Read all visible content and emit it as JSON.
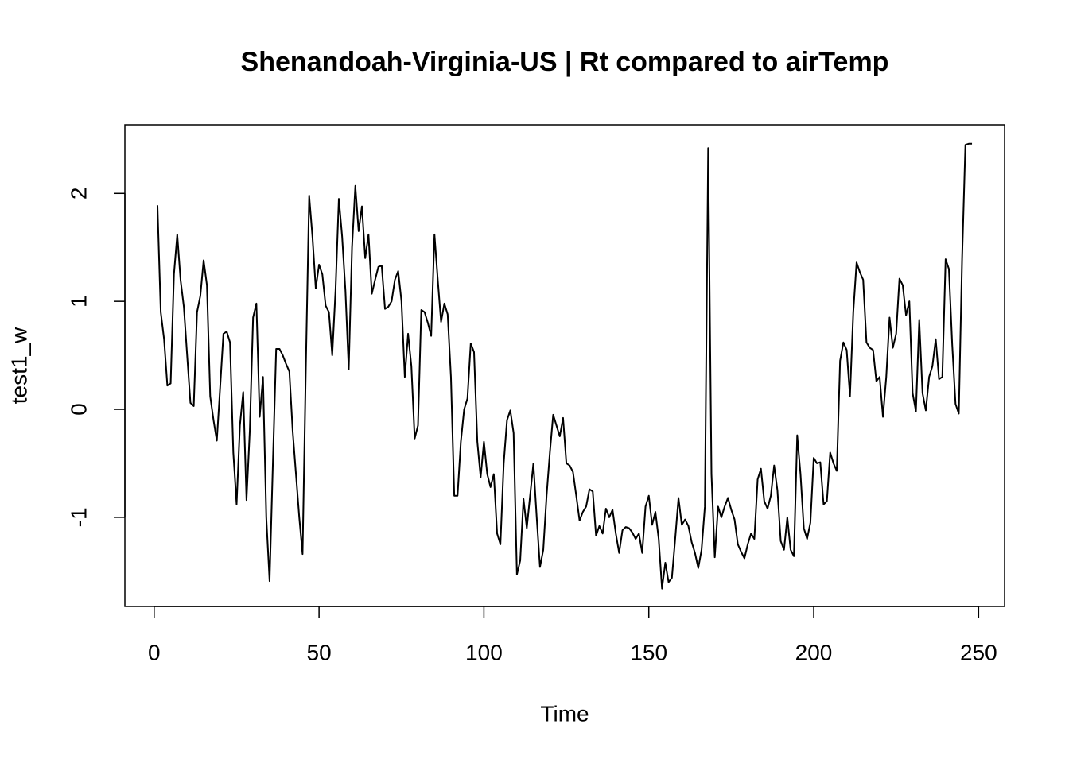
{
  "chart_data": {
    "type": "line",
    "title": "Shenandoah-Virginia-US | Rt compared to airTemp",
    "x_label": "Time",
    "y_label": "test1_w",
    "x": [
      1,
      2,
      3,
      4,
      5,
      6,
      7,
      8,
      9,
      10,
      11,
      12,
      13,
      14,
      15,
      16,
      17,
      18,
      19,
      20,
      21,
      22,
      23,
      24,
      25,
      26,
      27,
      28,
      29,
      30,
      31,
      32,
      33,
      34,
      35,
      36,
      37,
      38,
      39,
      40,
      41,
      42,
      43,
      44,
      45,
      46,
      47,
      48,
      49,
      50,
      51,
      52,
      53,
      54,
      55,
      56,
      57,
      58,
      59,
      60,
      61,
      62,
      63,
      64,
      65,
      66,
      67,
      68,
      69,
      70,
      71,
      72,
      73,
      74,
      75,
      76,
      77,
      78,
      79,
      80,
      81,
      82,
      83,
      84,
      85,
      86,
      87,
      88,
      89,
      90,
      91,
      92,
      93,
      94,
      95,
      96,
      97,
      98,
      99,
      100,
      101,
      102,
      103,
      104,
      105,
      106,
      107,
      108,
      109,
      110,
      111,
      112,
      113,
      114,
      115,
      116,
      117,
      118,
      119,
      120,
      121,
      122,
      123,
      124,
      125,
      126,
      127,
      128,
      129,
      130,
      131,
      132,
      133,
      134,
      135,
      136,
      137,
      138,
      139,
      140,
      141,
      142,
      143,
      144,
      145,
      146,
      147,
      148,
      149,
      150,
      151,
      152,
      153,
      154,
      155,
      156,
      157,
      158,
      159,
      160,
      161,
      162,
      163,
      164,
      165,
      166,
      167,
      168,
      169,
      170,
      171,
      172,
      173,
      174,
      175,
      176,
      177,
      178,
      179,
      180,
      181,
      182,
      183,
      184,
      185,
      186,
      187,
      188,
      189,
      190,
      191,
      192,
      193,
      194,
      195,
      196,
      197,
      198,
      199,
      200,
      201,
      202,
      203,
      204,
      205,
      206,
      207,
      208,
      209,
      210,
      211,
      212,
      213,
      214,
      215,
      216,
      217,
      218,
      219,
      220,
      221,
      222,
      223,
      224,
      225,
      226,
      227,
      228,
      229,
      230,
      231,
      232,
      233,
      234,
      235,
      236,
      237,
      238,
      239,
      240,
      241,
      242,
      243,
      244,
      245,
      246,
      247,
      248
    ],
    "values": [
      1.89,
      0.9,
      0.65,
      0.22,
      0.24,
      1.25,
      1.62,
      1.2,
      0.95,
      0.5,
      0.06,
      0.03,
      0.9,
      1.05,
      1.38,
      1.15,
      0.12,
      -0.1,
      -0.29,
      0.2,
      0.7,
      0.72,
      0.62,
      -0.4,
      -0.88,
      -0.15,
      0.16,
      -0.84,
      -0.2,
      0.85,
      0.98,
      -0.07,
      0.3,
      -1.0,
      -1.59,
      -0.5,
      0.56,
      0.56,
      0.5,
      0.42,
      0.35,
      -0.2,
      -0.6,
      -1.0,
      -1.34,
      0.4,
      1.98,
      1.6,
      1.12,
      1.34,
      1.25,
      0.96,
      0.9,
      0.5,
      1.1,
      1.95,
      1.6,
      1.1,
      0.37,
      1.5,
      2.07,
      1.65,
      1.88,
      1.4,
      1.62,
      1.07,
      1.2,
      1.32,
      1.33,
      0.93,
      0.95,
      1.0,
      1.2,
      1.28,
      1.0,
      0.3,
      0.7,
      0.4,
      -0.27,
      -0.15,
      0.92,
      0.9,
      0.8,
      0.68,
      1.62,
      1.2,
      0.81,
      0.98,
      0.88,
      0.3,
      -0.8,
      -0.8,
      -0.3,
      0.0,
      0.1,
      0.61,
      0.53,
      -0.3,
      -0.63,
      -0.3,
      -0.6,
      -0.72,
      -0.6,
      -1.15,
      -1.25,
      -0.5,
      -0.1,
      -0.01,
      -0.22,
      -1.53,
      -1.4,
      -0.83,
      -1.1,
      -0.8,
      -0.5,
      -1.0,
      -1.46,
      -1.3,
      -0.8,
      -0.4,
      -0.05,
      -0.15,
      -0.25,
      -0.08,
      -0.5,
      -0.52,
      -0.58,
      -0.8,
      -1.03,
      -0.95,
      -0.9,
      -0.74,
      -0.76,
      -1.17,
      -1.08,
      -1.15,
      -0.92,
      -1.0,
      -0.93,
      -1.15,
      -1.33,
      -1.12,
      -1.09,
      -1.1,
      -1.14,
      -1.2,
      -1.15,
      -1.33,
      -0.9,
      -0.8,
      -1.07,
      -0.95,
      -1.2,
      -1.66,
      -1.42,
      -1.6,
      -1.56,
      -1.2,
      -0.82,
      -1.07,
      -1.02,
      -1.08,
      -1.23,
      -1.33,
      -1.47,
      -1.3,
      -0.9,
      2.42,
      -0.6,
      -1.37,
      -0.9,
      -1.0,
      -0.9,
      -0.82,
      -0.93,
      -1.02,
      -1.25,
      -1.32,
      -1.38,
      -1.25,
      -1.15,
      -1.2,
      -0.65,
      -0.55,
      -0.85,
      -0.92,
      -0.8,
      -0.52,
      -0.75,
      -1.22,
      -1.3,
      -1.0,
      -1.3,
      -1.36,
      -0.24,
      -0.6,
      -1.1,
      -1.2,
      -1.05,
      -0.45,
      -0.5,
      -0.49,
      -0.88,
      -0.85,
      -0.4,
      -0.5,
      -0.57,
      0.45,
      0.62,
      0.55,
      0.12,
      0.9,
      1.36,
      1.27,
      1.2,
      0.62,
      0.57,
      0.55,
      0.26,
      0.3,
      -0.07,
      0.3,
      0.85,
      0.57,
      0.7,
      1.21,
      1.15,
      0.87,
      1.0,
      0.15,
      -0.02,
      0.83,
      0.15,
      -0.01,
      0.3,
      0.4,
      0.65,
      0.28,
      0.3,
      1.39,
      1.3,
      0.6,
      0.05,
      -0.04,
      1.4,
      2.45,
      2.46,
      2.46
    ],
    "color": "#000000",
    "xlim": [
      -8.88,
      257.88
    ],
    "ylim": [
      -1.825,
      2.635
    ],
    "xticks": [
      0,
      50,
      100,
      150,
      200,
      250
    ],
    "yticks": [
      -1,
      0,
      1,
      2
    ]
  }
}
